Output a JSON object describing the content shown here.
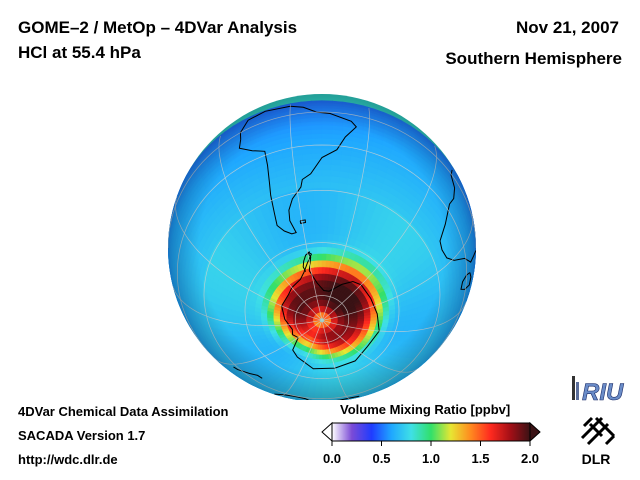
{
  "header": {
    "title": "GOME–2 / MetOp – 4DVar Analysis",
    "subtitle": "HCl at 55.4 hPa",
    "date": "Nov 21, 2007",
    "region": "Southern Hemisphere"
  },
  "footer": {
    "line1": "4DVar Chemical Data Assimilation",
    "line2": "SACADA Version 1.7",
    "line3": "http://wdc.dlr.de"
  },
  "colorbar": {
    "title": "Volume Mixing Ratio [ppbv]",
    "ticks": [
      "0.0",
      "0.5",
      "1.0",
      "1.5",
      "2.0"
    ],
    "range": [
      0.0,
      2.0
    ]
  },
  "logos": {
    "riu": "RIU",
    "dlr": "DLR"
  },
  "map": {
    "projection": "orthographic-south-polar",
    "parameter": "HCl",
    "background_vmr": 0.7,
    "anomaly_center_lon_lat": [
      -20,
      -75
    ],
    "anomaly_peak_vmr": 2.0
  },
  "colors": {
    "scale_stops": [
      "#ffffff",
      "#7b4bd6",
      "#1f3cff",
      "#1fa7ff",
      "#3fe0e6",
      "#31e06a",
      "#e7e633",
      "#ff8a1f",
      "#ff2a1f",
      "#a40f16",
      "#3a1215"
    ],
    "land": "#000000",
    "graticule": "#bfbfbf"
  }
}
